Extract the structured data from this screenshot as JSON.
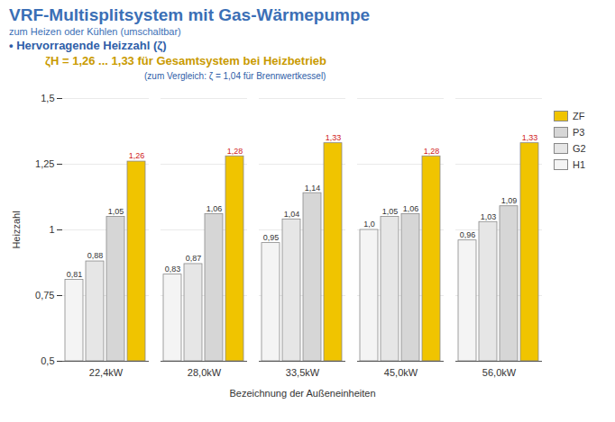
{
  "chart_data": {
    "type": "bar",
    "title": "VRF-Multisplitsystem mit Gas-Wärmepumpe",
    "subtitle": "zum Heizen oder Kühlen (umschaltbar)",
    "annotations": [
      "• Hervorragende Heizzahl (ζ)",
      "ζH = 1,26 ... 1,33 für Gesamtsystem bei Heizbetrieb",
      "(zum Vergleich: ζ = 1,04 für Brennwertkessel)"
    ],
    "x_label": "Bezeichnung der Außeneinheiten",
    "y_label": "Heizzahl",
    "categories": [
      "22,4kW",
      "28,0kW",
      "33,5kW",
      "45,0kW",
      "56,0kW"
    ],
    "series": [
      {
        "name": "H1",
        "color": "#f4f4f4",
        "values": [
          0.81,
          0.83,
          0.95,
          1.0,
          0.96
        ],
        "value_labels": [
          "0,81",
          "0,83",
          "0,95",
          "1,0",
          "0,96"
        ]
      },
      {
        "name": "G2",
        "color": "#e6e6e6",
        "values": [
          0.88,
          0.87,
          1.04,
          1.05,
          1.03
        ],
        "value_labels": [
          "0,88",
          "0,87",
          "1,04",
          "1,05",
          "1,03"
        ]
      },
      {
        "name": "P3",
        "color": "#d6d6d6",
        "values": [
          1.05,
          1.06,
          1.14,
          1.06,
          1.09
        ],
        "value_labels": [
          "1,05",
          "1,06",
          "1,14",
          "1,06",
          "1,09"
        ]
      },
      {
        "name": "ZF",
        "color": "#f0c400",
        "values": [
          1.26,
          1.28,
          1.33,
          1.28,
          1.33
        ],
        "value_labels": [
          "1,26",
          "1,28",
          "1,33",
          "1,28",
          "1,33"
        ]
      }
    ],
    "ylim": [
      0.5,
      1.5
    ],
    "yticks": [
      {
        "value": 0.5,
        "label": "0,5"
      },
      {
        "value": 0.75,
        "label": "0,75"
      },
      1,
      {
        "value": 1.25,
        "label": "1,25"
      },
      {
        "value": 1.5,
        "label": "1,5"
      }
    ],
    "grid": true,
    "data_labels": true,
    "legend": "right"
  }
}
